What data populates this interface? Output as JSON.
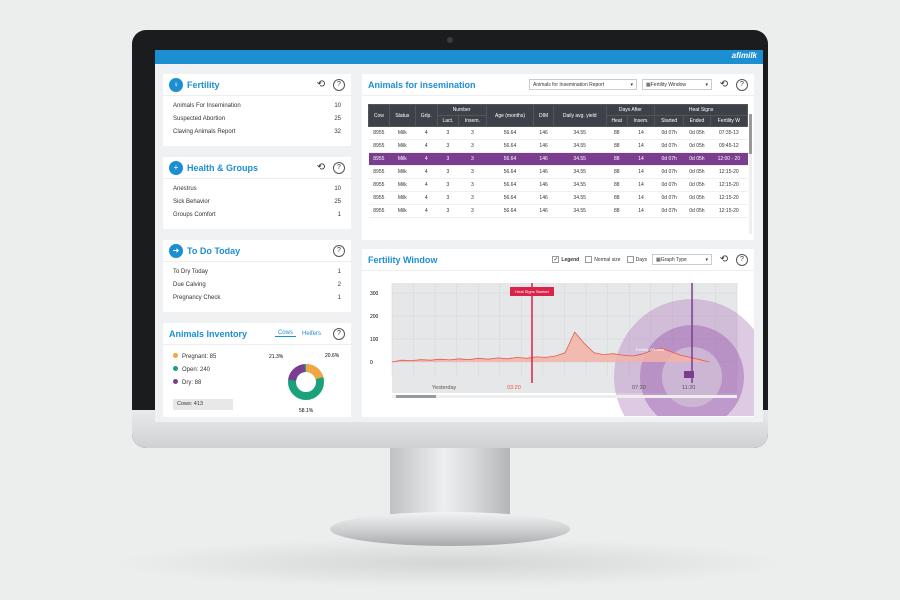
{
  "brand": "afimilk",
  "fertility": {
    "title": "Fertility",
    "items": [
      {
        "label": "Animals For Insemination",
        "value": "10"
      },
      {
        "label": "Suspected Abortion",
        "value": "25"
      },
      {
        "label": "Claving Animals Report",
        "value": "32"
      }
    ]
  },
  "health": {
    "title": "Health & Groups",
    "items": [
      {
        "label": "Anestrus",
        "value": "10"
      },
      {
        "label": "Sick Behavior",
        "value": "25"
      },
      {
        "label": "Groups Comfort",
        "value": "1"
      }
    ]
  },
  "todo": {
    "title": "To Do Today",
    "items": [
      {
        "label": "To Dry Today",
        "value": "1"
      },
      {
        "label": "Due Calving",
        "value": "2"
      },
      {
        "label": "Pregnancy Check",
        "value": "1"
      }
    ]
  },
  "inventory": {
    "title": "Animals Inventory",
    "tab_cows": "Cows",
    "tab_heifers": "Heifers",
    "legend": [
      {
        "label": "Pregnant: 85",
        "color": "#f2a541"
      },
      {
        "label": "Open: 240",
        "color": "#1aa37a"
      },
      {
        "label": "Dry: 88",
        "color": "#7a3d8f"
      }
    ],
    "total": "Cows: 413",
    "pct_dry": "21.3%",
    "pct_preg": "20.6%",
    "pct_open": "58.1%"
  },
  "insemination": {
    "title": "Animals for insemination",
    "report_select": "Animals for Insemination Report",
    "window_select": "Fertility Window",
    "headers": {
      "cow": "Cow",
      "status": "Status",
      "grp": "Grlp.",
      "number": "Number",
      "lact": "Lact.",
      "insem": "Insem.",
      "age": "Age (months)",
      "dim": "DIM",
      "daily": "Daily avg. yield",
      "days_after": "Days After",
      "heat": "Heat",
      "insem2": "Insem.",
      "heat_signs": "Heat Signs",
      "started": "Started",
      "ended": "Ended",
      "fw": "Fertility W"
    },
    "rows": [
      [
        "8955",
        "Milk",
        "4",
        "3",
        "3",
        "56.64",
        "146",
        "34.55",
        "88",
        "14",
        "0d 07h",
        "0d 05h",
        "07:35-13"
      ],
      [
        "8955",
        "Milk",
        "4",
        "3",
        "3",
        "56.64",
        "146",
        "34.55",
        "88",
        "14",
        "0d 07h",
        "0d 05h",
        "09:45-12"
      ],
      [
        "8955",
        "Milk",
        "4",
        "3",
        "3",
        "56.64",
        "146",
        "34.55",
        "88",
        "14",
        "0d 07h",
        "0d 05h",
        "12:00 - 20"
      ],
      [
        "8955",
        "Milk",
        "4",
        "3",
        "3",
        "56.64",
        "146",
        "34.55",
        "88",
        "14",
        "0d 07h",
        "0d 05h",
        "12:15-20"
      ],
      [
        "8955",
        "Milk",
        "4",
        "3",
        "3",
        "56.64",
        "146",
        "34.55",
        "88",
        "14",
        "0d 07h",
        "0d 05h",
        "12:15-20"
      ],
      [
        "8955",
        "Milk",
        "4",
        "3",
        "3",
        "56.64",
        "146",
        "34.55",
        "88",
        "14",
        "0d 07h",
        "0d 05h",
        "12:15-20"
      ],
      [
        "8955",
        "Milk",
        "4",
        "3",
        "3",
        "56.64",
        "146",
        "34.55",
        "88",
        "14",
        "0d 07h",
        "0d 05h",
        "12:15-20"
      ]
    ],
    "selected_row": 2
  },
  "fwindow": {
    "title": "Fertility Window",
    "legend_label": "Legend",
    "normal_label": "Normal size",
    "days_label": "Days",
    "graph_type": "Graph Type",
    "heat_signs_label": "Heat Signs Started",
    "fw_label": "Fertility Window",
    "colors": {
      "area": "#f3b3a8",
      "line": "#e45a4c",
      "marker": "#d8234a",
      "fw": "#7a3d8f"
    }
  },
  "chart_data": {
    "type": "area",
    "yticks": [
      "300",
      "200",
      "100",
      "0"
    ],
    "ylim": [
      0,
      300
    ],
    "xticks": [
      "Yesterday",
      "03:20",
      "07:20",
      "11:20"
    ],
    "values": [
      0,
      8,
      6,
      10,
      8,
      12,
      9,
      14,
      10,
      16,
      12,
      18,
      14,
      20,
      16,
      22,
      20,
      26,
      40,
      130,
      80,
      40,
      32,
      36,
      30,
      26,
      34,
      50,
      60,
      45,
      30,
      20,
      10,
      0
    ]
  }
}
